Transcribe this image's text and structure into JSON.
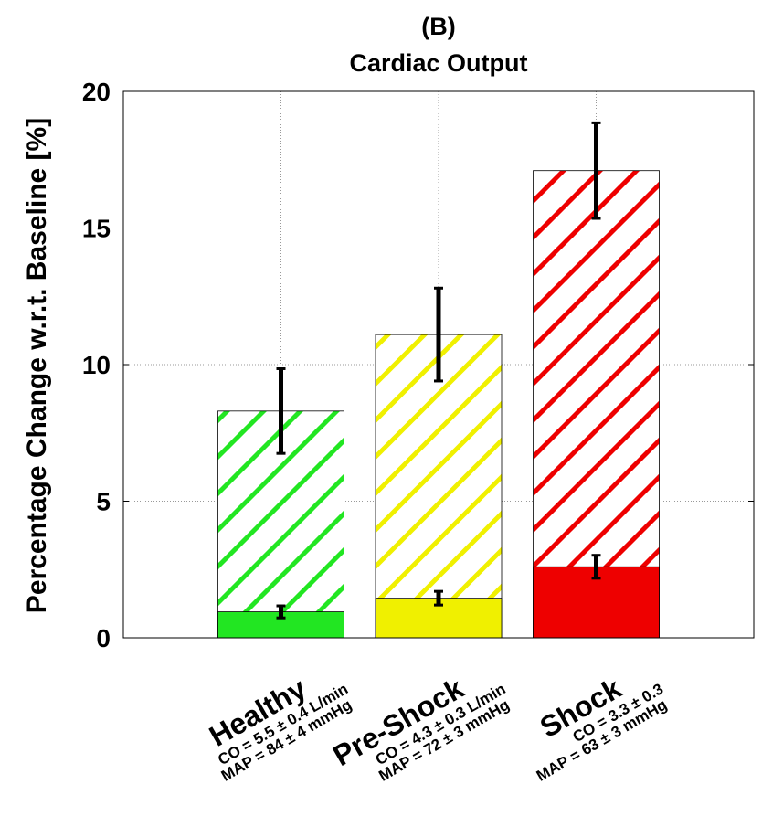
{
  "chart_data": {
    "type": "bar",
    "title": "(B)",
    "subtitle": "Cardiac Output",
    "y_label": "Percentage Change w.r.t. Baseline [%]",
    "categories": [
      "Healthy",
      "Pre-Shock",
      "Shock"
    ],
    "category_details": [
      [
        "CO = 5.5 ± 0.4 L/min",
        "MAP = 84 ± 4 mmHg"
      ],
      [
        "CO = 4.3 ± 0.3 L/min",
        "MAP = 72 ± 3 mmHg"
      ],
      [
        "CO = 3.3 ± 0.3",
        "MAP = 63 ± 3 mmHg"
      ]
    ],
    "series": [
      {
        "hatch": true,
        "colors": [
          "#22e622",
          "#f0f000",
          "#ee0000"
        ],
        "values": [
          8.3,
          11.1,
          17.1
        ],
        "errors": [
          1.55,
          1.7,
          1.75
        ]
      },
      {
        "hatch": false,
        "colors": [
          "#22e622",
          "#f0f000",
          "#ee0000"
        ],
        "values": [
          0.95,
          1.45,
          2.6
        ],
        "errors": [
          0.22,
          0.25,
          0.42
        ]
      }
    ],
    "ylim": [
      0,
      20
    ],
    "yticks": [
      0,
      5,
      10,
      15,
      20
    ],
    "grid": true
  }
}
